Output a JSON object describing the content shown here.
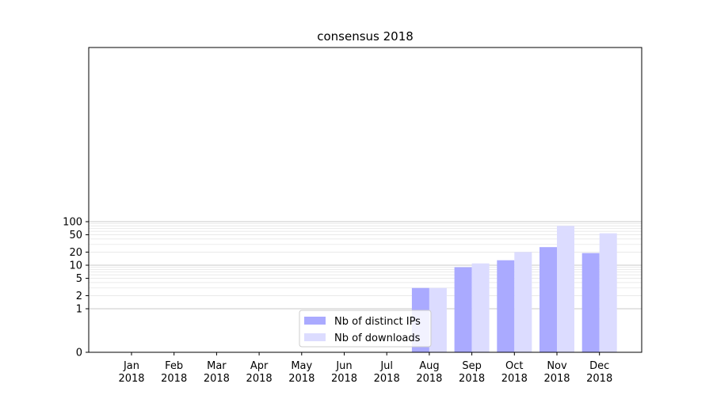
{
  "chart_data": {
    "type": "bar",
    "title": "consensus 2018",
    "xlabel": "",
    "ylabel": "",
    "y_scale": "symlog",
    "ylim": [
      0,
      130
    ],
    "yticks": [
      0,
      1,
      2,
      5,
      10,
      20,
      50,
      100
    ],
    "grid": "y-major-and-minor",
    "categories": [
      [
        "Jan",
        "2018"
      ],
      [
        "Feb",
        "2018"
      ],
      [
        "Mar",
        "2018"
      ],
      [
        "Apr",
        "2018"
      ],
      [
        "May",
        "2018"
      ],
      [
        "Jun",
        "2018"
      ],
      [
        "Jul",
        "2018"
      ],
      [
        "Aug",
        "2018"
      ],
      [
        "Sep",
        "2018"
      ],
      [
        "Oct",
        "2018"
      ],
      [
        "Nov",
        "2018"
      ],
      [
        "Dec",
        "2018"
      ]
    ],
    "series": [
      {
        "name": "Nb of distinct IPs",
        "color": "#aaaaff",
        "values": [
          0,
          0,
          0,
          0,
          0,
          0,
          0,
          3,
          9,
          13,
          26,
          19
        ]
      },
      {
        "name": "Nb of downloads",
        "color": "#dcdcff",
        "values": [
          0,
          0,
          0,
          0,
          0,
          0,
          0,
          3,
          11,
          20,
          80,
          54
        ]
      }
    ],
    "legend_position": "lower center"
  }
}
